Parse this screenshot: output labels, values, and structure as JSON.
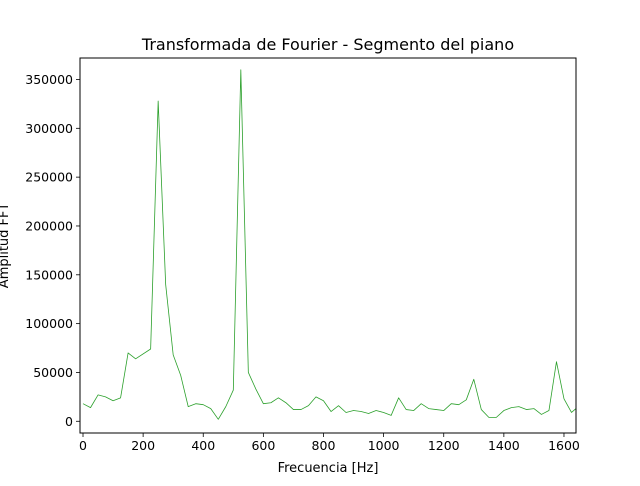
{
  "chart_data": {
    "type": "line",
    "title": "Transformada de Fourier - Segmento del piano",
    "xlabel": "Frecuencia [Hz]",
    "ylabel": "Amplitud FFT",
    "xlim": [
      -10,
      1640
    ],
    "ylim": [
      -12000,
      372000
    ],
    "x_ticks": [
      0,
      200,
      400,
      600,
      800,
      1000,
      1200,
      1400,
      1600
    ],
    "x_tick_labels": [
      "0",
      "200",
      "400",
      "600",
      "800",
      "1000",
      "1200",
      "1400",
      "1600"
    ],
    "y_ticks": [
      0,
      50000,
      100000,
      150000,
      200000,
      250000,
      300000,
      350000
    ],
    "y_tick_labels": [
      "0",
      "50000",
      "100000",
      "150000",
      "200000",
      "250000",
      "300000",
      "350000"
    ],
    "grid": false,
    "line_color": "#2ca02c",
    "series": [
      {
        "x": [
          0,
          25,
          50,
          75,
          100,
          125,
          150,
          175,
          225,
          250,
          275,
          300,
          325,
          350,
          375,
          400,
          425,
          450,
          475,
          500,
          525,
          550,
          575,
          600,
          625,
          650,
          675,
          700,
          725,
          750,
          775,
          800,
          825,
          850,
          875,
          900,
          925,
          950,
          975,
          1000,
          1025,
          1050,
          1075,
          1100,
          1125,
          1150,
          1175,
          1200,
          1225,
          1250,
          1275,
          1300,
          1325,
          1350,
          1375,
          1400,
          1425,
          1450,
          1475,
          1500,
          1525,
          1550,
          1575,
          1600,
          1625,
          1640
        ],
        "values": [
          18000,
          14000,
          27000,
          25000,
          21000,
          24000,
          70000,
          64000,
          74000,
          328000,
          140000,
          68000,
          47000,
          15000,
          18000,
          17000,
          13000,
          2000,
          15000,
          32000,
          360000,
          50000,
          33000,
          18000,
          19000,
          24000,
          19000,
          12000,
          12000,
          16000,
          25000,
          21000,
          10000,
          16000,
          9000,
          11000,
          10000,
          8000,
          11000,
          9000,
          6000,
          24000,
          12000,
          11000,
          18000,
          13000,
          12000,
          11000,
          18000,
          17000,
          22000,
          43000,
          12000,
          4000,
          4000,
          11000,
          14000,
          15000,
          12000,
          13000,
          7000,
          11000,
          61000,
          23000,
          9000,
          13000
        ]
      }
    ]
  }
}
